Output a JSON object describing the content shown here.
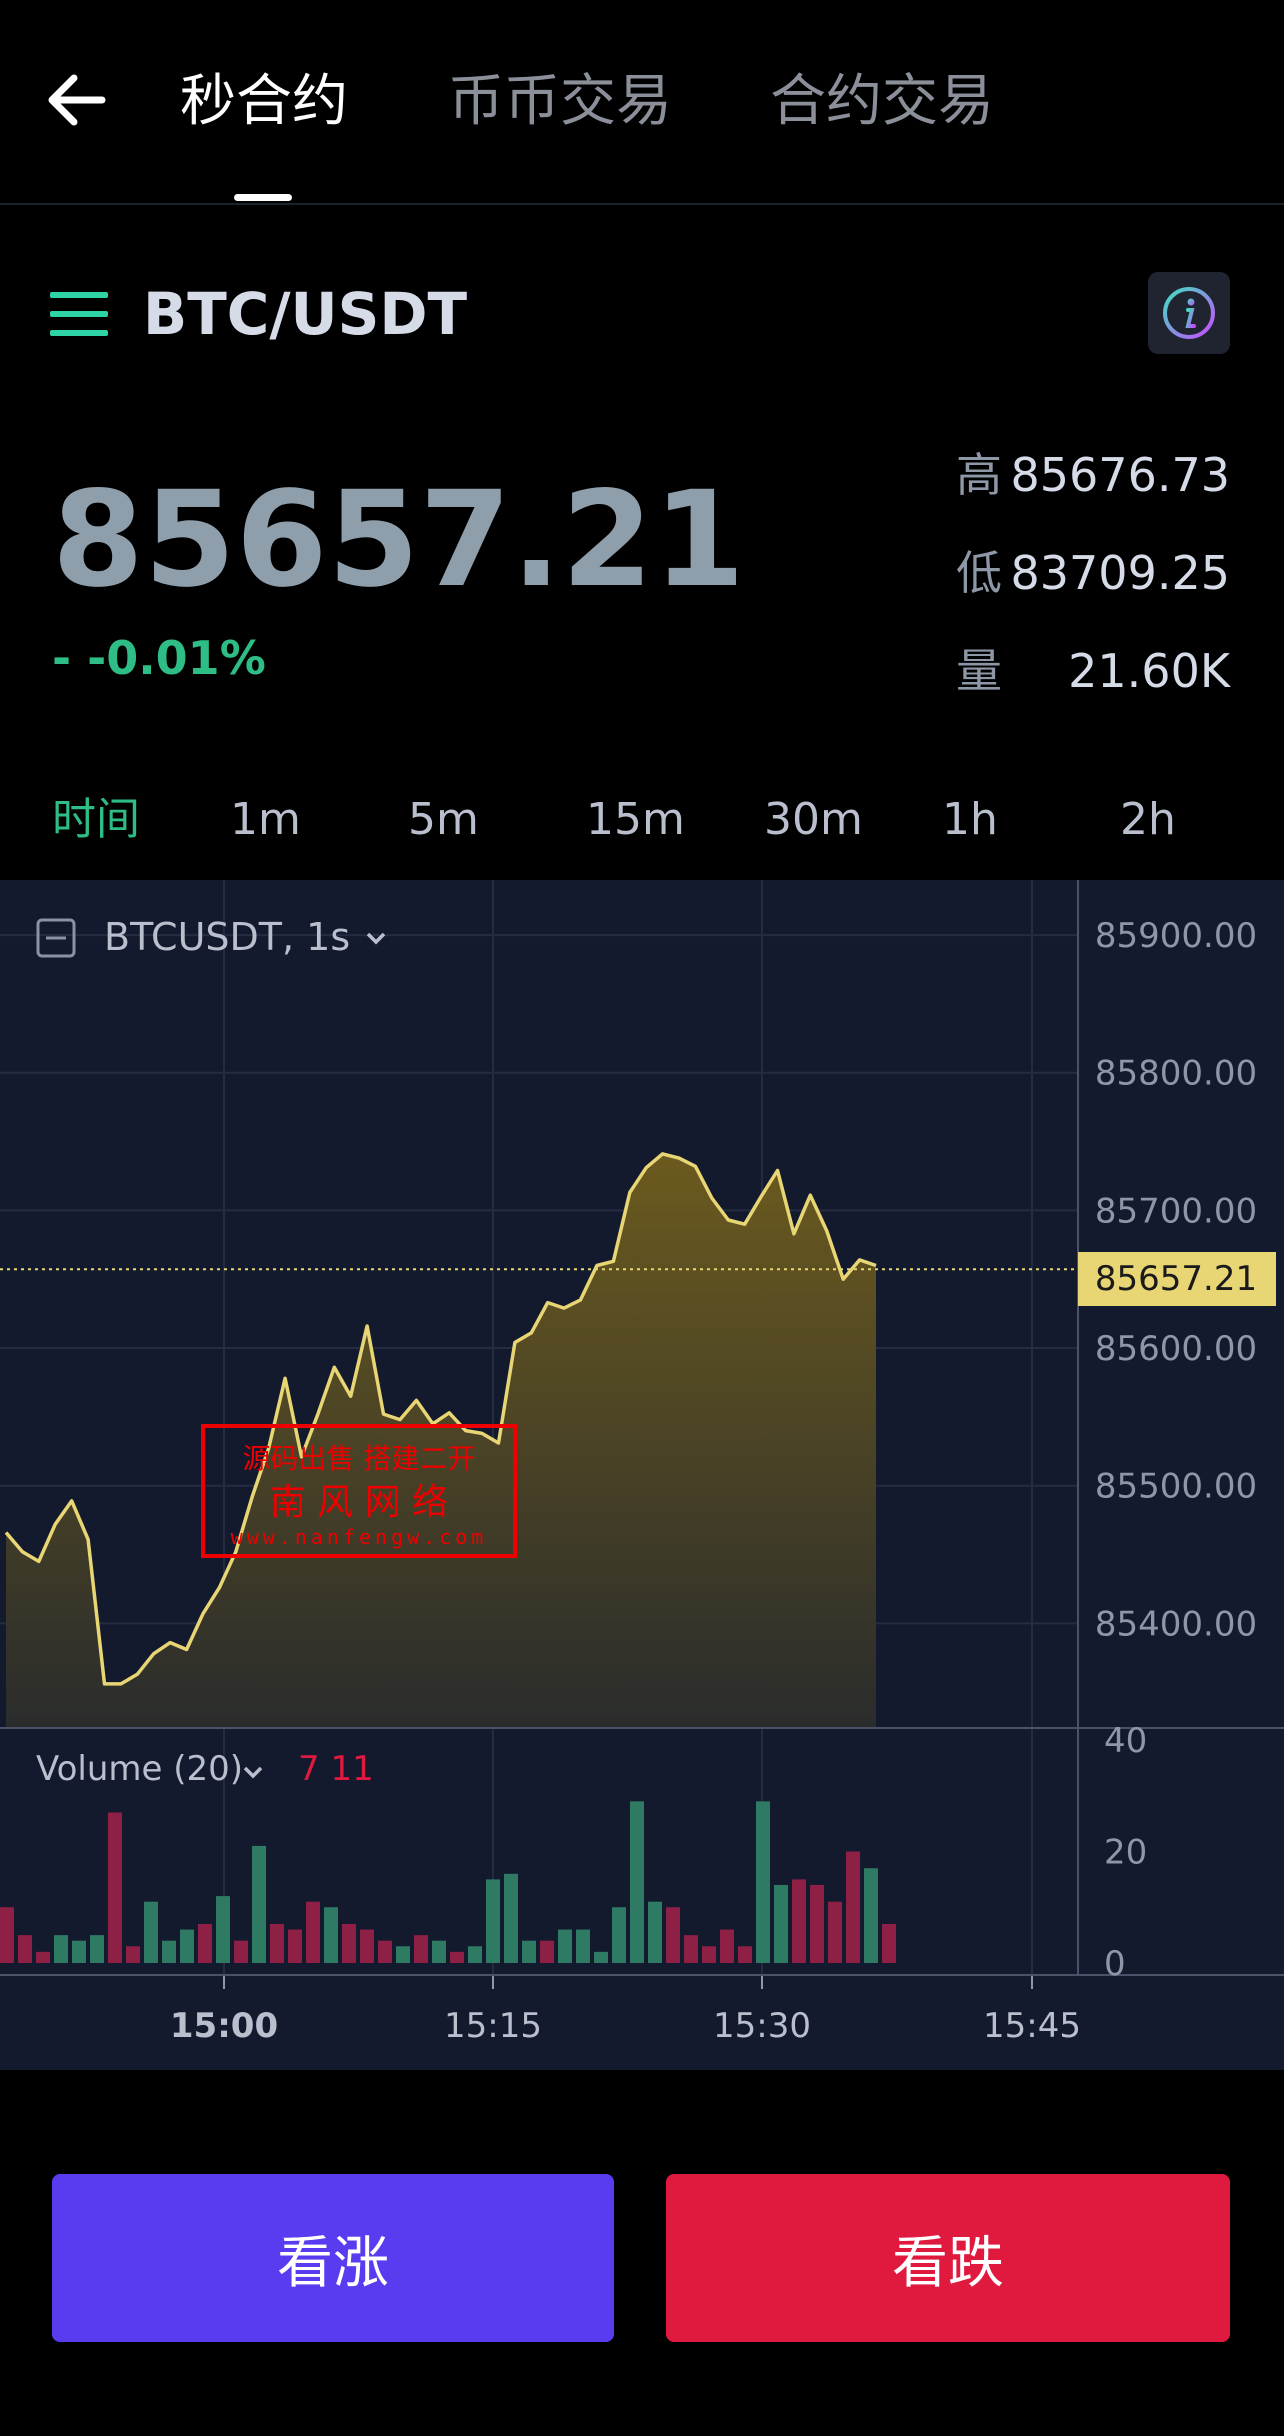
{
  "nav": {
    "tabs": [
      {
        "label": "秒合约"
      },
      {
        "label": "币币交易"
      },
      {
        "label": "合约交易"
      }
    ]
  },
  "pair": {
    "label": "BTC/USDT"
  },
  "price": {
    "last": "85657.21",
    "change": "- -0.01%",
    "stats": [
      {
        "key": "高",
        "value": "85676.73"
      },
      {
        "key": "低",
        "value": "83709.25"
      },
      {
        "key": "量",
        "value": "21.60K"
      }
    ]
  },
  "intervals": [
    "时间",
    "1m",
    "5m",
    "15m",
    "30m",
    "1h",
    "2h"
  ],
  "chart": {
    "symbol_label": "BTCUSDT, 1s",
    "volume_label": "Volume (20)",
    "volume_value": "7 11",
    "current_price_label": "85657.21",
    "watermark": {
      "line1": "源码出售 搭建二开",
      "line2": "南 风 网 络",
      "line3": "www.nanfengw.com"
    },
    "colors": {
      "line": "#e8d574",
      "up": "#2f7a63",
      "down": "#8e1f45",
      "bg": "#131a2e"
    }
  },
  "chart_data": {
    "type": "area",
    "price_axis": {
      "ticks": [
        "85900.00",
        "85800.00",
        "85700.00",
        "85600.00",
        "85500.00",
        "85400.00"
      ],
      "ylim": [
        85324,
        85940
      ]
    },
    "time_axis": {
      "ticks": [
        "15:00",
        "15:15",
        "15:30",
        "15:45"
      ],
      "bold_tick": "15:00"
    },
    "volume_axis": {
      "ticks": [
        "40",
        "20",
        "0"
      ],
      "ylim": [
        0,
        40
      ]
    },
    "current_price": 85657.21,
    "series": [
      {
        "values": [
          85466,
          85452,
          85445,
          85472,
          85489,
          85461,
          85356,
          85356,
          85363,
          85378,
          85386,
          85381,
          85407,
          85426,
          85452,
          85492,
          85527,
          85578,
          85521,
          85552,
          85586,
          85565,
          85616,
          85552,
          85548,
          85562,
          85545,
          85553,
          85540,
          85538,
          85531,
          85604,
          85611,
          85633,
          85629,
          85635,
          85660,
          85663,
          85713,
          85731,
          85741,
          85738,
          85732,
          85709,
          85693,
          85690,
          85710,
          85729,
          85683,
          85711,
          85685,
          85650,
          85664,
          85660
        ]
      }
    ],
    "volume": [
      {
        "v": 10,
        "dir": "down"
      },
      {
        "v": 5,
        "dir": "down"
      },
      {
        "v": 2,
        "dir": "down"
      },
      {
        "v": 5,
        "dir": "up"
      },
      {
        "v": 4,
        "dir": "up"
      },
      {
        "v": 5,
        "dir": "up"
      },
      {
        "v": 27,
        "dir": "down"
      },
      {
        "v": 3,
        "dir": "down"
      },
      {
        "v": 11,
        "dir": "up"
      },
      {
        "v": 4,
        "dir": "up"
      },
      {
        "v": 6,
        "dir": "up"
      },
      {
        "v": 7,
        "dir": "down"
      },
      {
        "v": 12,
        "dir": "up"
      },
      {
        "v": 4,
        "dir": "down"
      },
      {
        "v": 21,
        "dir": "up"
      },
      {
        "v": 7,
        "dir": "down"
      },
      {
        "v": 6,
        "dir": "down"
      },
      {
        "v": 11,
        "dir": "down"
      },
      {
        "v": 10,
        "dir": "up"
      },
      {
        "v": 7,
        "dir": "down"
      },
      {
        "v": 6,
        "dir": "down"
      },
      {
        "v": 4,
        "dir": "down"
      },
      {
        "v": 3,
        "dir": "up"
      },
      {
        "v": 5,
        "dir": "down"
      },
      {
        "v": 4,
        "dir": "up"
      },
      {
        "v": 2,
        "dir": "down"
      },
      {
        "v": 3,
        "dir": "up"
      },
      {
        "v": 15,
        "dir": "up"
      },
      {
        "v": 16,
        "dir": "up"
      },
      {
        "v": 4,
        "dir": "up"
      },
      {
        "v": 4,
        "dir": "down"
      },
      {
        "v": 6,
        "dir": "up"
      },
      {
        "v": 6,
        "dir": "up"
      },
      {
        "v": 2,
        "dir": "up"
      },
      {
        "v": 10,
        "dir": "up"
      },
      {
        "v": 29,
        "dir": "up"
      },
      {
        "v": 11,
        "dir": "up"
      },
      {
        "v": 10,
        "dir": "down"
      },
      {
        "v": 5,
        "dir": "down"
      },
      {
        "v": 3,
        "dir": "down"
      },
      {
        "v": 6,
        "dir": "down"
      },
      {
        "v": 3,
        "dir": "down"
      },
      {
        "v": 29,
        "dir": "up"
      },
      {
        "v": 14,
        "dir": "up"
      },
      {
        "v": 15,
        "dir": "down"
      },
      {
        "v": 14,
        "dir": "down"
      },
      {
        "v": 11,
        "dir": "down"
      },
      {
        "v": 20,
        "dir": "down"
      },
      {
        "v": 17,
        "dir": "up"
      },
      {
        "v": 7,
        "dir": "down"
      }
    ]
  },
  "actions": {
    "up": "看涨",
    "down": "看跌"
  }
}
